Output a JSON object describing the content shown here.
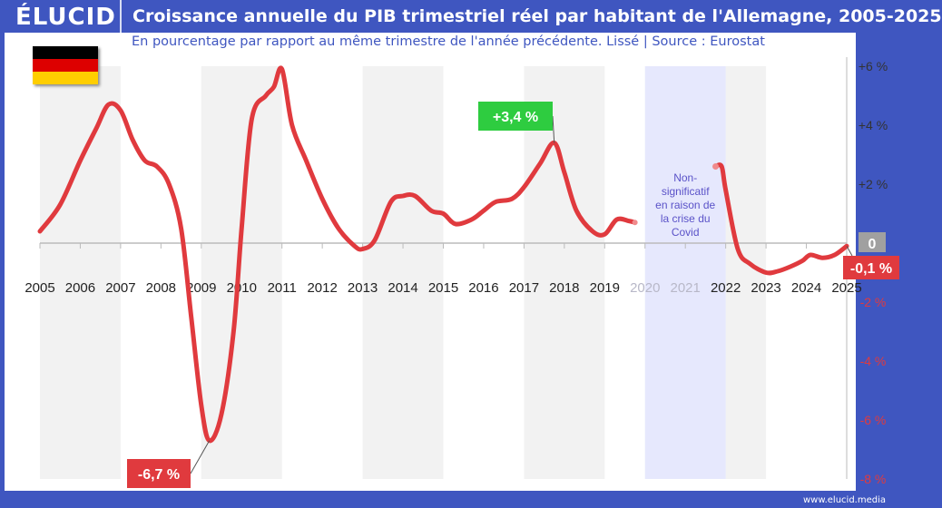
{
  "header": {
    "logo": "ÉLUCID",
    "title": "Croissance annuelle du PIB trimestriel réel par habitant de l'Allemagne, 2005-2025"
  },
  "subtitle": "En pourcentage par rapport au même trimestre de l'année précédente. Lissé  |  Source : Eurostat",
  "footer": "www.elucid.media",
  "flag_colors": [
    "#000000",
    "#dd0000",
    "#ffce00"
  ],
  "colors": {
    "line": "#e03a3e",
    "brand": "#3f56c0",
    "covid_band": "#e6e8fd",
    "band": "#f2f2f2",
    "zero_box": "#a0a0a0",
    "pos_box": "#2ecc40",
    "neg_box": "#e03a3e"
  },
  "chart_data": {
    "type": "line",
    "title": "Croissance annuelle du PIB trimestriel réel par habitant de l'Allemagne, 2005-2025",
    "xlim": [
      2005,
      2025
    ],
    "ylim": [
      -8,
      6
    ],
    "x_ticks": [
      "2005",
      "2006",
      "2007",
      "2008",
      "2009",
      "2010",
      "2011",
      "2012",
      "2013",
      "2014",
      "2015",
      "2016",
      "2017",
      "2018",
      "2019",
      "2020",
      "2021",
      "2022",
      "2023",
      "2024",
      "2025"
    ],
    "y_ticks": [
      {
        "v": 6,
        "label": "+6 %"
      },
      {
        "v": 4,
        "label": "+4 %"
      },
      {
        "v": 2,
        "label": "+2 %"
      },
      {
        "v": 0,
        "label": "0"
      },
      {
        "v": -2,
        "label": "-2 %"
      },
      {
        "v": -4,
        "label": "-4 %"
      },
      {
        "v": -6,
        "label": "-6 %"
      },
      {
        "v": -8,
        "label": "-8 %"
      }
    ],
    "series": [
      {
        "segment": "2005-2019",
        "points": [
          [
            2005,
            0.4
          ],
          [
            2005.5,
            1.3
          ],
          [
            2006,
            2.8
          ],
          [
            2006.4,
            3.9
          ],
          [
            2006.7,
            4.7
          ],
          [
            2007,
            4.5
          ],
          [
            2007.3,
            3.5
          ],
          [
            2007.6,
            2.8
          ],
          [
            2007.9,
            2.6
          ],
          [
            2008.2,
            2.0
          ],
          [
            2008.5,
            0.5
          ],
          [
            2008.75,
            -2.5
          ],
          [
            2009,
            -5.5
          ],
          [
            2009.2,
            -6.7
          ],
          [
            2009.5,
            -5.8
          ],
          [
            2009.8,
            -3.0
          ],
          [
            2010,
            0.5
          ],
          [
            2010.25,
            4.2
          ],
          [
            2010.6,
            5.0
          ],
          [
            2010.8,
            5.3
          ],
          [
            2011,
            5.9
          ],
          [
            2011.25,
            4.0
          ],
          [
            2011.6,
            2.8
          ],
          [
            2012,
            1.5
          ],
          [
            2012.4,
            0.5
          ],
          [
            2012.8,
            -0.1
          ],
          [
            2013,
            -0.2
          ],
          [
            2013.3,
            0.1
          ],
          [
            2013.7,
            1.4
          ],
          [
            2014,
            1.6
          ],
          [
            2014.3,
            1.6
          ],
          [
            2014.7,
            1.1
          ],
          [
            2015,
            1.0
          ],
          [
            2015.3,
            0.65
          ],
          [
            2015.7,
            0.8
          ],
          [
            2016,
            1.1
          ],
          [
            2016.3,
            1.4
          ],
          [
            2016.7,
            1.5
          ],
          [
            2017,
            1.9
          ],
          [
            2017.4,
            2.7
          ],
          [
            2017.75,
            3.4
          ],
          [
            2018,
            2.4
          ],
          [
            2018.3,
            1.1
          ],
          [
            2018.7,
            0.4
          ],
          [
            2019,
            0.3
          ],
          [
            2019.3,
            0.8
          ],
          [
            2019.6,
            0.75
          ],
          [
            2019.75,
            0.7
          ]
        ]
      },
      {
        "segment": "2022-2025",
        "points": [
          [
            2021.75,
            2.6
          ],
          [
            2021.9,
            2.6
          ],
          [
            2022,
            1.8
          ],
          [
            2022.3,
            -0.2
          ],
          [
            2022.6,
            -0.7
          ],
          [
            2023,
            -1.0
          ],
          [
            2023.3,
            -0.95
          ],
          [
            2023.6,
            -0.8
          ],
          [
            2023.9,
            -0.6
          ],
          [
            2024.1,
            -0.4
          ],
          [
            2024.4,
            -0.5
          ],
          [
            2024.7,
            -0.4
          ],
          [
            2025,
            -0.1
          ]
        ]
      }
    ],
    "covid_band": [
      2020,
      2022
    ],
    "covid_note": [
      "Non-",
      "significatif",
      "en raison de",
      "la crise du",
      "Covid"
    ],
    "annotations": [
      {
        "x": 2017.75,
        "y": 3.4,
        "label": "+3,4 %",
        "color": "pos"
      },
      {
        "x": 2009.2,
        "y": -6.7,
        "label": "-6,7 %",
        "color": "neg"
      },
      {
        "x": 2025,
        "y": -0.1,
        "label": "-0,1 %",
        "color": "neg"
      }
    ],
    "grayed_years": [
      "2020",
      "2021"
    ]
  }
}
